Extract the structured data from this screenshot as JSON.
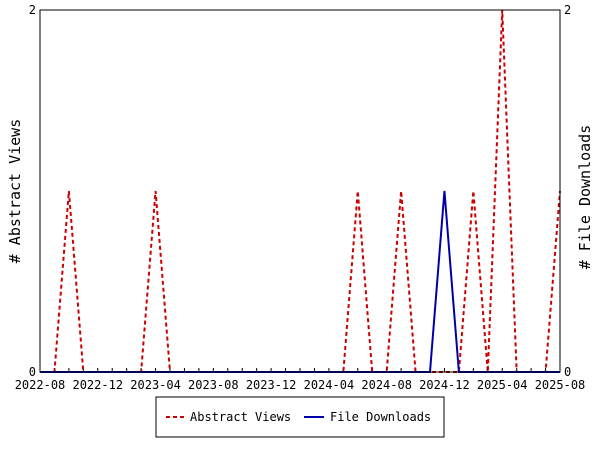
{
  "chart_data": {
    "type": "line",
    "ylabel_left": "# Abstract Views",
    "ylabel_right": "# File Downloads",
    "y_left_ticks": [
      "0",
      "2"
    ],
    "y_right_ticks": [
      "0",
      "2"
    ],
    "ylim": [
      0,
      2
    ],
    "x_start": "2022-08",
    "x_end": "2025-08",
    "x_tick_labels": [
      "2022-08",
      "2022-12",
      "2023-04",
      "2023-08",
      "2023-12",
      "2024-04",
      "2024-08",
      "2024-12",
      "2025-04",
      "2025-08"
    ],
    "x_months": [
      "2022-08",
      "2022-09",
      "2022-10",
      "2022-11",
      "2022-12",
      "2023-01",
      "2023-02",
      "2023-03",
      "2023-04",
      "2023-05",
      "2023-06",
      "2023-07",
      "2023-08",
      "2023-09",
      "2023-10",
      "2023-11",
      "2023-12",
      "2024-01",
      "2024-02",
      "2024-03",
      "2024-04",
      "2024-05",
      "2024-06",
      "2024-07",
      "2024-08",
      "2024-09",
      "2024-10",
      "2024-11",
      "2024-12",
      "2025-01",
      "2025-02",
      "2025-03",
      "2025-04",
      "2025-05",
      "2025-06",
      "2025-07",
      "2025-08"
    ],
    "series": [
      {
        "name": "Abstract Views",
        "color": "#cc0000",
        "style": "dashed",
        "values": [
          0,
          0,
          1,
          0,
          0,
          0,
          0,
          0,
          1,
          0,
          0,
          0,
          0,
          0,
          0,
          0,
          0,
          0,
          0,
          0,
          0,
          0,
          1,
          0,
          0,
          1,
          0,
          0,
          0,
          0,
          1,
          0,
          2,
          0,
          0,
          0,
          1
        ]
      },
      {
        "name": "File Downloads",
        "color": "#0000aa",
        "style": "solid",
        "values": [
          0,
          0,
          0,
          0,
          0,
          0,
          0,
          0,
          0,
          0,
          0,
          0,
          0,
          0,
          0,
          0,
          0,
          0,
          0,
          0,
          0,
          0,
          0,
          0,
          0,
          0,
          0,
          0,
          1,
          0,
          0,
          0,
          0,
          0,
          0,
          0,
          0
        ]
      }
    ],
    "grid": false,
    "legend_position": "bottom"
  }
}
